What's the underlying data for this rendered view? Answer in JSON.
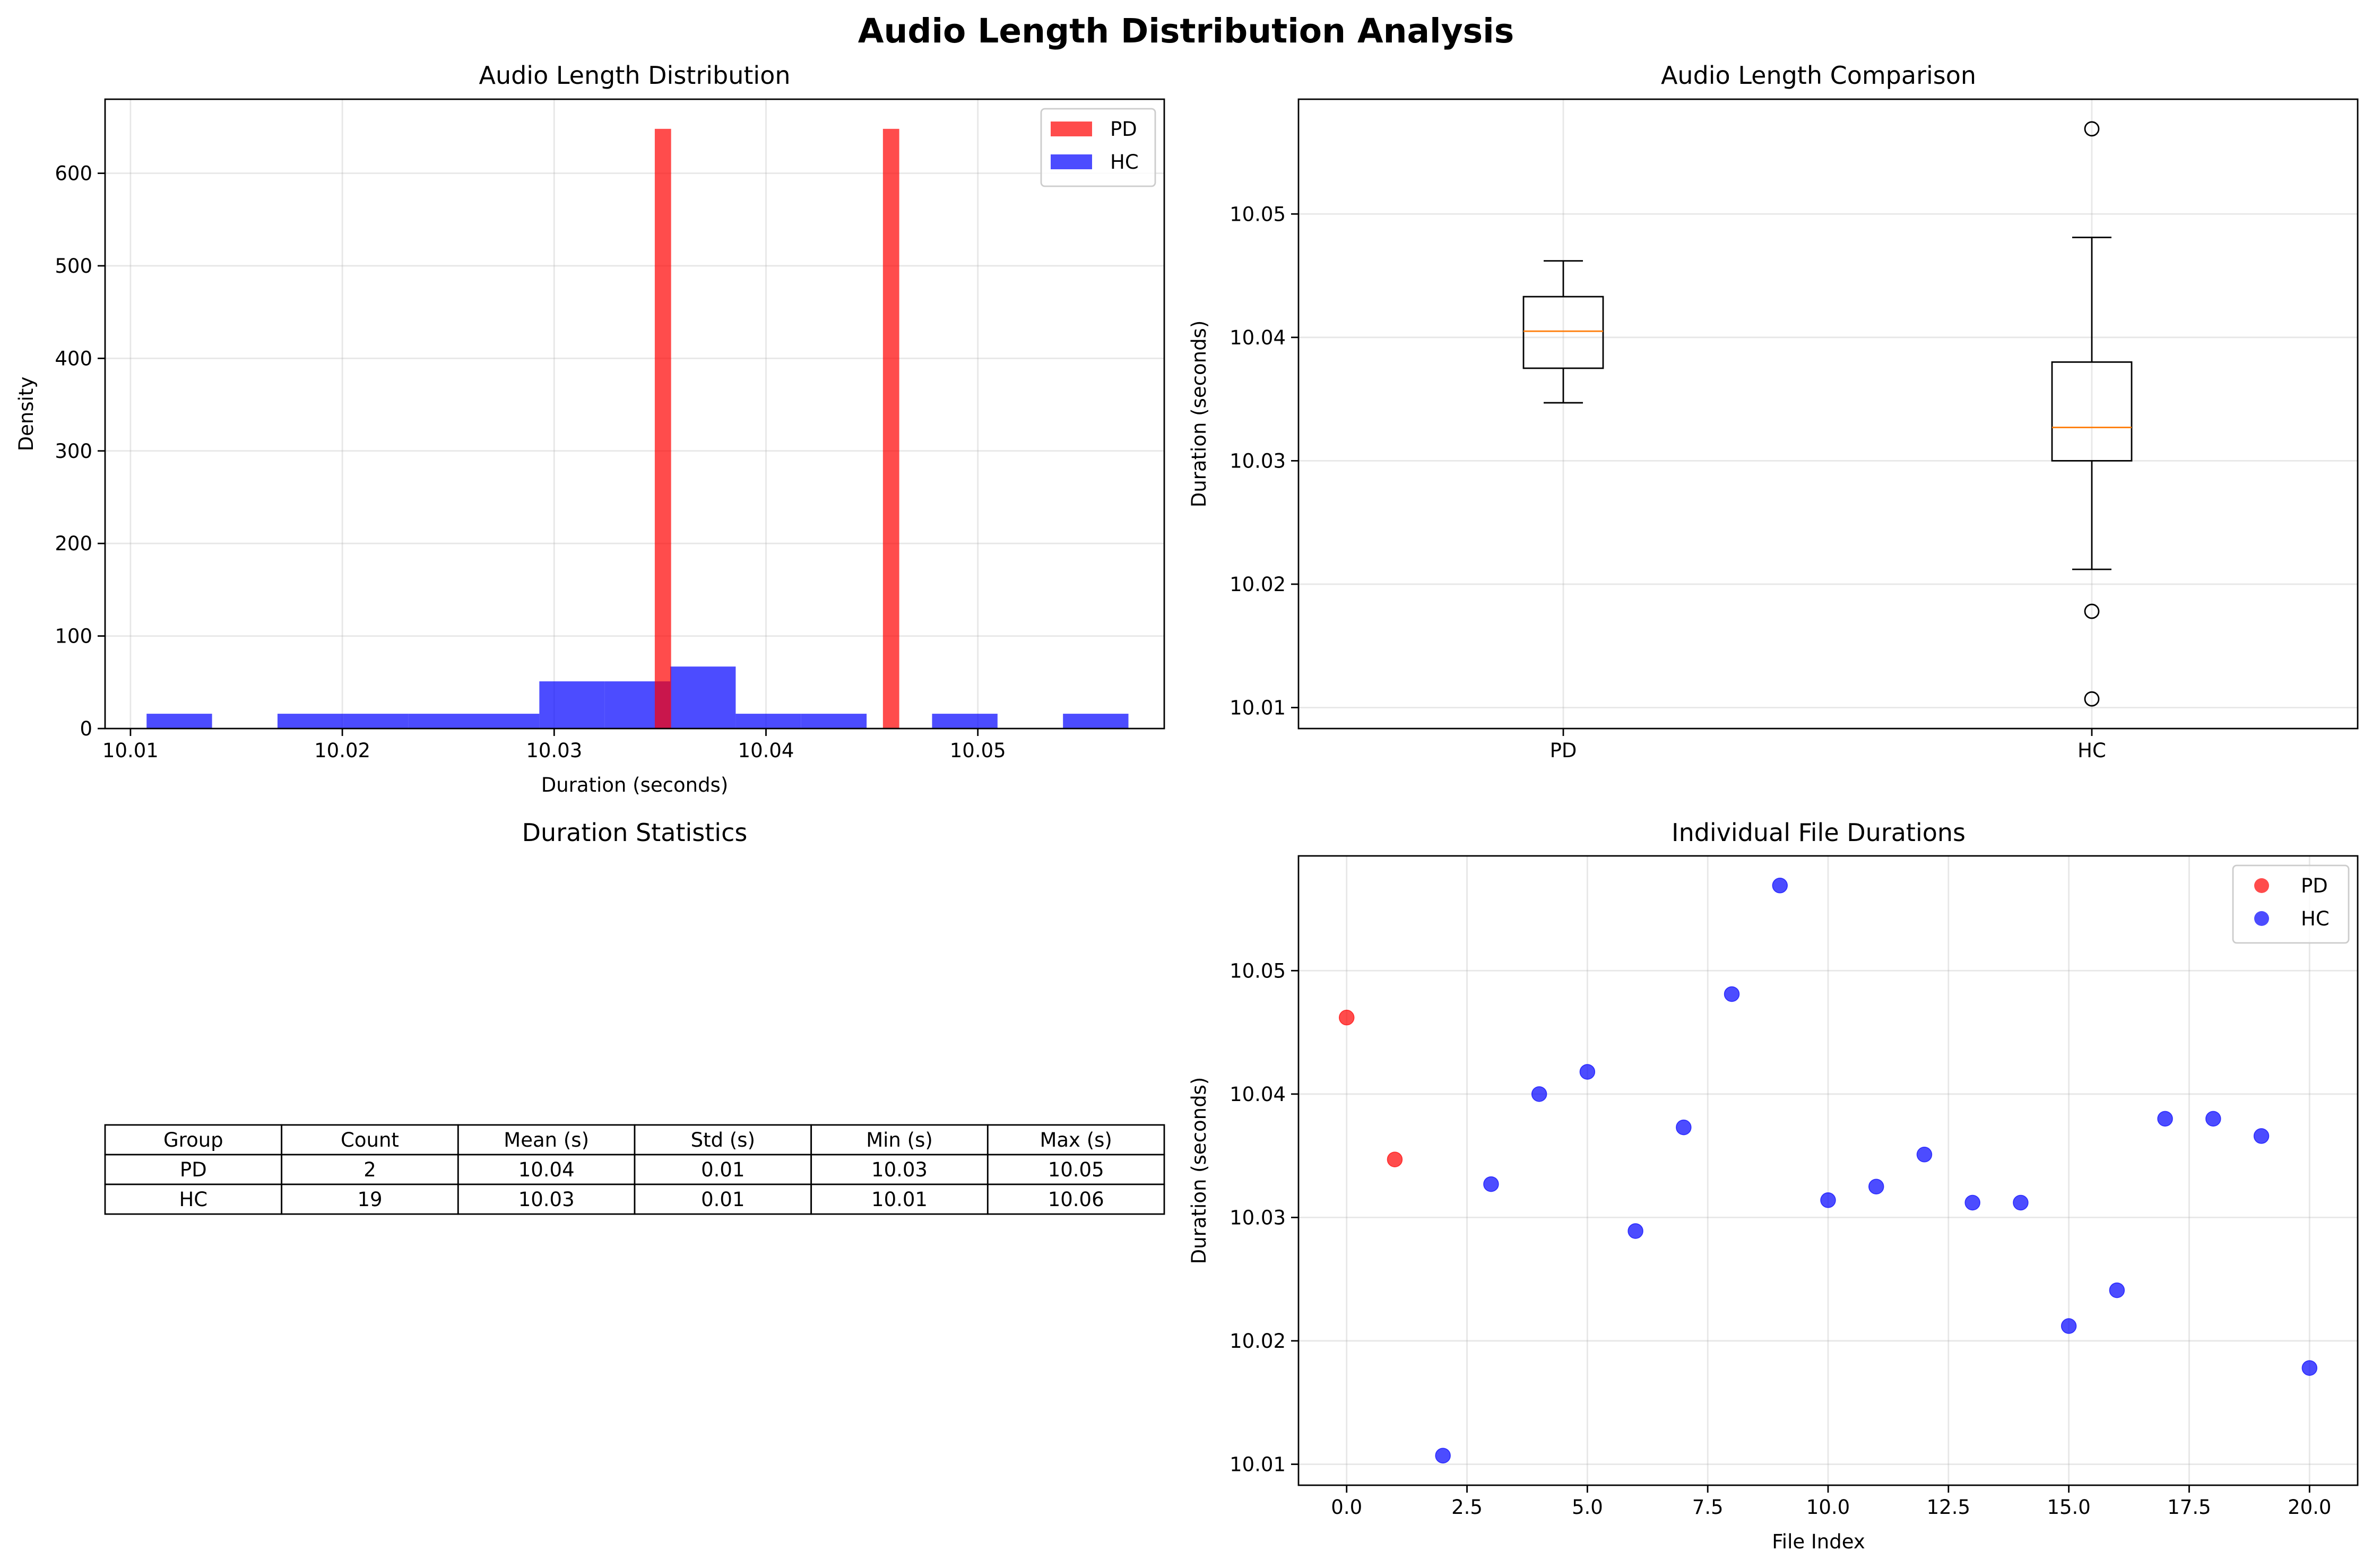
{
  "figure": {
    "title": "Audio Length Distribution Analysis"
  },
  "colors": {
    "pd": "#ff0000",
    "hc": "#0000ff",
    "median": "#ff7f0e"
  },
  "chart_data": [
    {
      "type": "bar",
      "subtype": "histogram",
      "title": "Audio Length Distribution",
      "xlabel": "Duration (seconds)",
      "ylabel": "Density",
      "xlim": [
        10.0088,
        10.0588
      ],
      "ylim": [
        0,
        680
      ],
      "xticks": [
        10.01,
        10.02,
        10.03,
        10.04,
        10.05
      ],
      "xtick_labels": [
        "10.01",
        "10.02",
        "10.03",
        "10.04",
        "10.05"
      ],
      "yticks": [
        0,
        100,
        200,
        300,
        400,
        500,
        600
      ],
      "ytick_labels": [
        "0",
        "100",
        "200",
        "300",
        "400",
        "500",
        "600"
      ],
      "grid": true,
      "legend": "upper right",
      "series": [
        {
          "name": "PD",
          "color": "#ff0000",
          "alpha": 0.7,
          "bins": [
            {
              "x0": 10.03475,
              "x1": 10.03552,
              "density": 648
            },
            {
              "x0": 10.04552,
              "x1": 10.04629,
              "density": 648
            }
          ]
        },
        {
          "name": "HC",
          "color": "#0000ff",
          "alpha": 0.7,
          "bins": [
            {
              "x0": 10.01076,
              "x1": 10.01385,
              "density": 16
            },
            {
              "x0": 10.01694,
              "x1": 10.02003,
              "density": 16
            },
            {
              "x0": 10.02003,
              "x1": 10.02312,
              "density": 16
            },
            {
              "x0": 10.02312,
              "x1": 10.02621,
              "density": 16
            },
            {
              "x0": 10.02621,
              "x1": 10.0293,
              "density": 16
            },
            {
              "x0": 10.0293,
              "x1": 10.03239,
              "density": 51
            },
            {
              "x0": 10.03239,
              "x1": 10.03548,
              "density": 51
            },
            {
              "x0": 10.03548,
              "x1": 10.03857,
              "density": 67
            },
            {
              "x0": 10.03857,
              "x1": 10.04166,
              "density": 16
            },
            {
              "x0": 10.04166,
              "x1": 10.04475,
              "density": 16
            },
            {
              "x0": 10.04784,
              "x1": 10.05093,
              "density": 16
            },
            {
              "x0": 10.05402,
              "x1": 10.05711,
              "density": 16
            }
          ]
        }
      ]
    },
    {
      "type": "box",
      "title": "Audio Length Comparison",
      "xlabel": "",
      "ylabel": "Duration (seconds)",
      "ylim": [
        10.0083,
        10.0593
      ],
      "yticks": [
        10.01,
        10.02,
        10.03,
        10.04,
        10.05
      ],
      "ytick_labels": [
        "10.01",
        "10.02",
        "10.03",
        "10.04",
        "10.05"
      ],
      "categories": [
        "PD",
        "HC"
      ],
      "grid": true,
      "boxes": [
        {
          "name": "PD",
          "whisker_low": 10.0347,
          "q1": 10.0375,
          "median": 10.0405,
          "q3": 10.0433,
          "whisker_high": 10.0462,
          "outliers": []
        },
        {
          "name": "HC",
          "whisker_low": 10.0212,
          "q1": 10.03,
          "median": 10.0327,
          "q3": 10.038,
          "whisker_high": 10.0481,
          "outliers": [
            10.0569,
            10.0178,
            10.0107
          ]
        }
      ]
    },
    {
      "type": "table",
      "title": "Duration Statistics",
      "columns": [
        "Group",
        "Count",
        "Mean (s)",
        "Std (s)",
        "Min (s)",
        "Max (s)"
      ],
      "rows": [
        [
          "PD",
          "2",
          "10.04",
          "0.01",
          "10.03",
          "10.05"
        ],
        [
          "HC",
          "19",
          "10.03",
          "0.01",
          "10.01",
          "10.06"
        ]
      ]
    },
    {
      "type": "scatter",
      "title": "Individual File Durations",
      "xlabel": "File Index",
      "ylabel": "Duration (seconds)",
      "xlim": [
        -1.0,
        21.0
      ],
      "ylim": [
        10.0083,
        10.0593
      ],
      "xticks": [
        0.0,
        2.5,
        5.0,
        7.5,
        10.0,
        12.5,
        15.0,
        17.5,
        20.0
      ],
      "xtick_labels": [
        "0.0",
        "2.5",
        "5.0",
        "7.5",
        "10.0",
        "12.5",
        "15.0",
        "17.5",
        "20.0"
      ],
      "yticks": [
        10.01,
        10.02,
        10.03,
        10.04,
        10.05
      ],
      "ytick_labels": [
        "10.01",
        "10.02",
        "10.03",
        "10.04",
        "10.05"
      ],
      "grid": true,
      "legend": "upper right",
      "series": [
        {
          "name": "PD",
          "color": "#ff0000",
          "x": [
            0,
            1
          ],
          "y": [
            10.0462,
            10.0347
          ]
        },
        {
          "name": "HC",
          "color": "#0000ff",
          "x": [
            2,
            3,
            4,
            5,
            6,
            7,
            8,
            9,
            10,
            11,
            12,
            13,
            14,
            15,
            16,
            17,
            18,
            19,
            20
          ],
          "y": [
            10.0107,
            10.0327,
            10.04,
            10.0418,
            10.0289,
            10.0373,
            10.0481,
            10.0569,
            10.0314,
            10.0325,
            10.0351,
            10.0312,
            10.0312,
            10.0212,
            10.0241,
            10.038,
            10.038,
            10.0366,
            10.0178
          ]
        }
      ]
    }
  ]
}
